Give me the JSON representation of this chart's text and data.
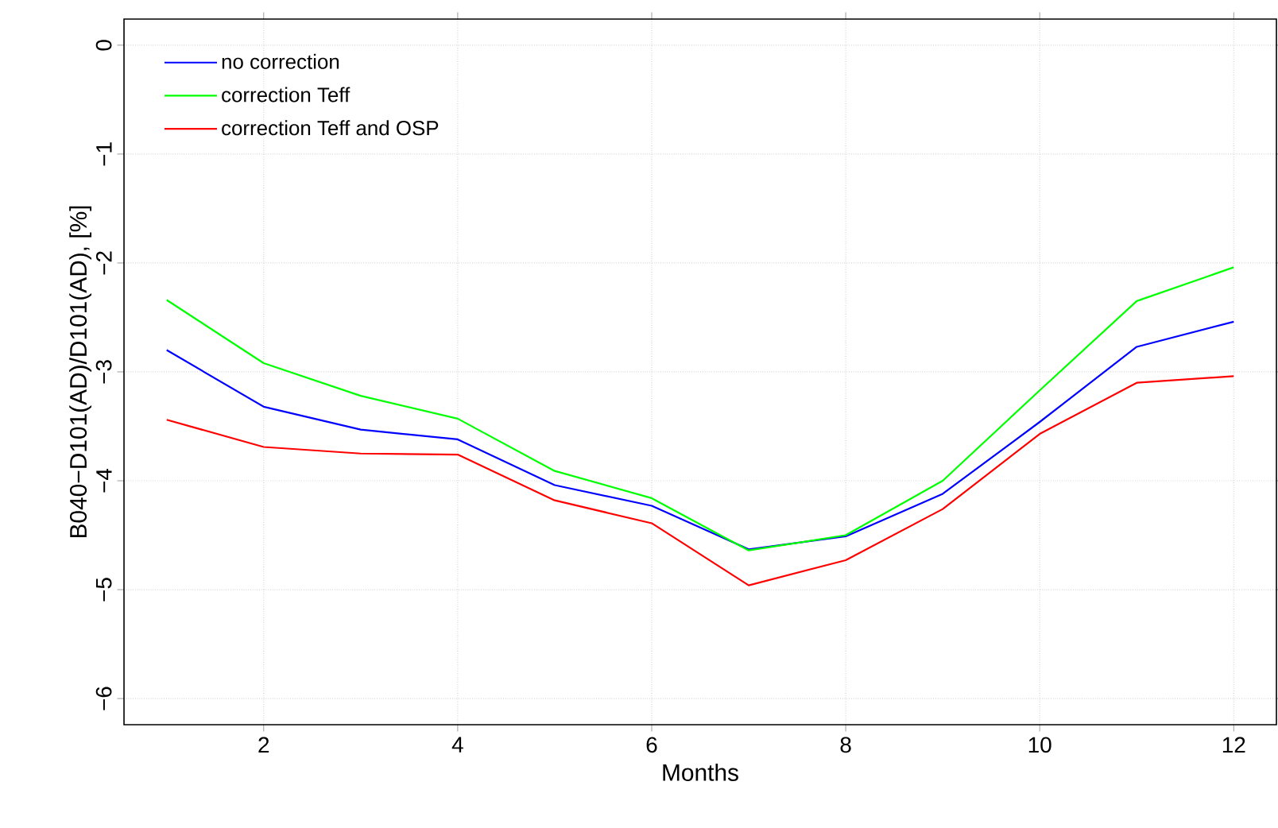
{
  "chart_data": {
    "type": "line",
    "xlabel": "Months",
    "ylabel": "B040−D101(AD)/D101(AD), [%]",
    "x": [
      1,
      2,
      3,
      4,
      5,
      6,
      7,
      8,
      9,
      10,
      11,
      12
    ],
    "series": [
      {
        "name": "no correction",
        "color": "#0000ff",
        "values": [
          -2.8,
          -3.32,
          -3.53,
          -3.62,
          -4.04,
          -4.23,
          -4.63,
          -4.51,
          -4.12,
          -3.46,
          -2.77,
          -2.54
        ]
      },
      {
        "name": "correction Teff",
        "color": "#00ff00",
        "values": [
          -2.34,
          -2.92,
          -3.22,
          -3.43,
          -3.91,
          -4.16,
          -4.64,
          -4.5,
          -4.0,
          -3.17,
          -2.35,
          -2.04
        ]
      },
      {
        "name": "correction Teff and OSP",
        "color": "#ff0000",
        "values": [
          -3.44,
          -3.69,
          -3.75,
          -3.76,
          -4.18,
          -4.39,
          -4.96,
          -4.73,
          -4.26,
          -3.57,
          -3.1,
          -3.04
        ]
      }
    ],
    "xlim": [
      0.56,
      12.44
    ],
    "ylim": [
      -6.24,
      0.24
    ],
    "xticks": [
      2,
      4,
      6,
      8,
      10,
      12
    ],
    "yticks": [
      {
        "value": 0,
        "label": "0"
      },
      {
        "value": -1,
        "label": "−1"
      },
      {
        "value": -2,
        "label": "−2"
      },
      {
        "value": -3,
        "label": "−3"
      },
      {
        "value": -4,
        "label": "−4"
      },
      {
        "value": -5,
        "label": "−5"
      },
      {
        "value": -6,
        "label": "−6"
      }
    ],
    "grid": true,
    "legend": "top left",
    "marker": "none",
    "line_style": "solid"
  }
}
